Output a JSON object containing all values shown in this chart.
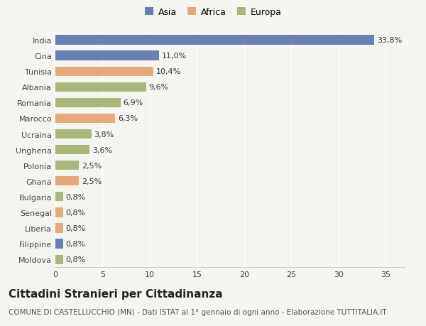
{
  "categories": [
    "Moldova",
    "Filippine",
    "Liberia",
    "Senegal",
    "Bulgaria",
    "Ghana",
    "Polonia",
    "Ungheria",
    "Ucraina",
    "Marocco",
    "Romania",
    "Albania",
    "Tunisia",
    "Cina",
    "India"
  ],
  "values": [
    0.8,
    0.8,
    0.8,
    0.8,
    0.8,
    2.5,
    2.5,
    3.6,
    3.8,
    6.3,
    6.9,
    9.6,
    10.4,
    11.0,
    33.8
  ],
  "colors": [
    "#a8b87a",
    "#6a7fb5",
    "#e8a97a",
    "#e8a97a",
    "#a8b87a",
    "#e8a97a",
    "#a8b87a",
    "#a8b87a",
    "#a8b87a",
    "#e8a97a",
    "#a8b87a",
    "#a8b87a",
    "#e8a97a",
    "#6a7fb5",
    "#6a7fb5"
  ],
  "labels": [
    "0,8%",
    "0,8%",
    "0,8%",
    "0,8%",
    "0,8%",
    "2,5%",
    "2,5%",
    "3,6%",
    "3,8%",
    "6,3%",
    "6,9%",
    "9,6%",
    "10,4%",
    "11,0%",
    "33,8%"
  ],
  "legend": [
    {
      "label": "Asia",
      "color": "#6a7fb5"
    },
    {
      "label": "Africa",
      "color": "#e8a97a"
    },
    {
      "label": "Europa",
      "color": "#a8b87a"
    }
  ],
  "title": "Cittadini Stranieri per Cittadinanza",
  "subtitle": "COMUNE DI CASTELLUCCHIO (MN) - Dati ISTAT al 1° gennaio di ogni anno - Elaborazione TUTTITALIA.IT",
  "xlim": [
    0,
    37
  ],
  "xticks": [
    0,
    5,
    10,
    15,
    20,
    25,
    30,
    35
  ],
  "background_color": "#f5f5f0",
  "bar_height": 0.6,
  "label_fontsize": 8,
  "tick_fontsize": 8,
  "title_fontsize": 11,
  "subtitle_fontsize": 7.5
}
